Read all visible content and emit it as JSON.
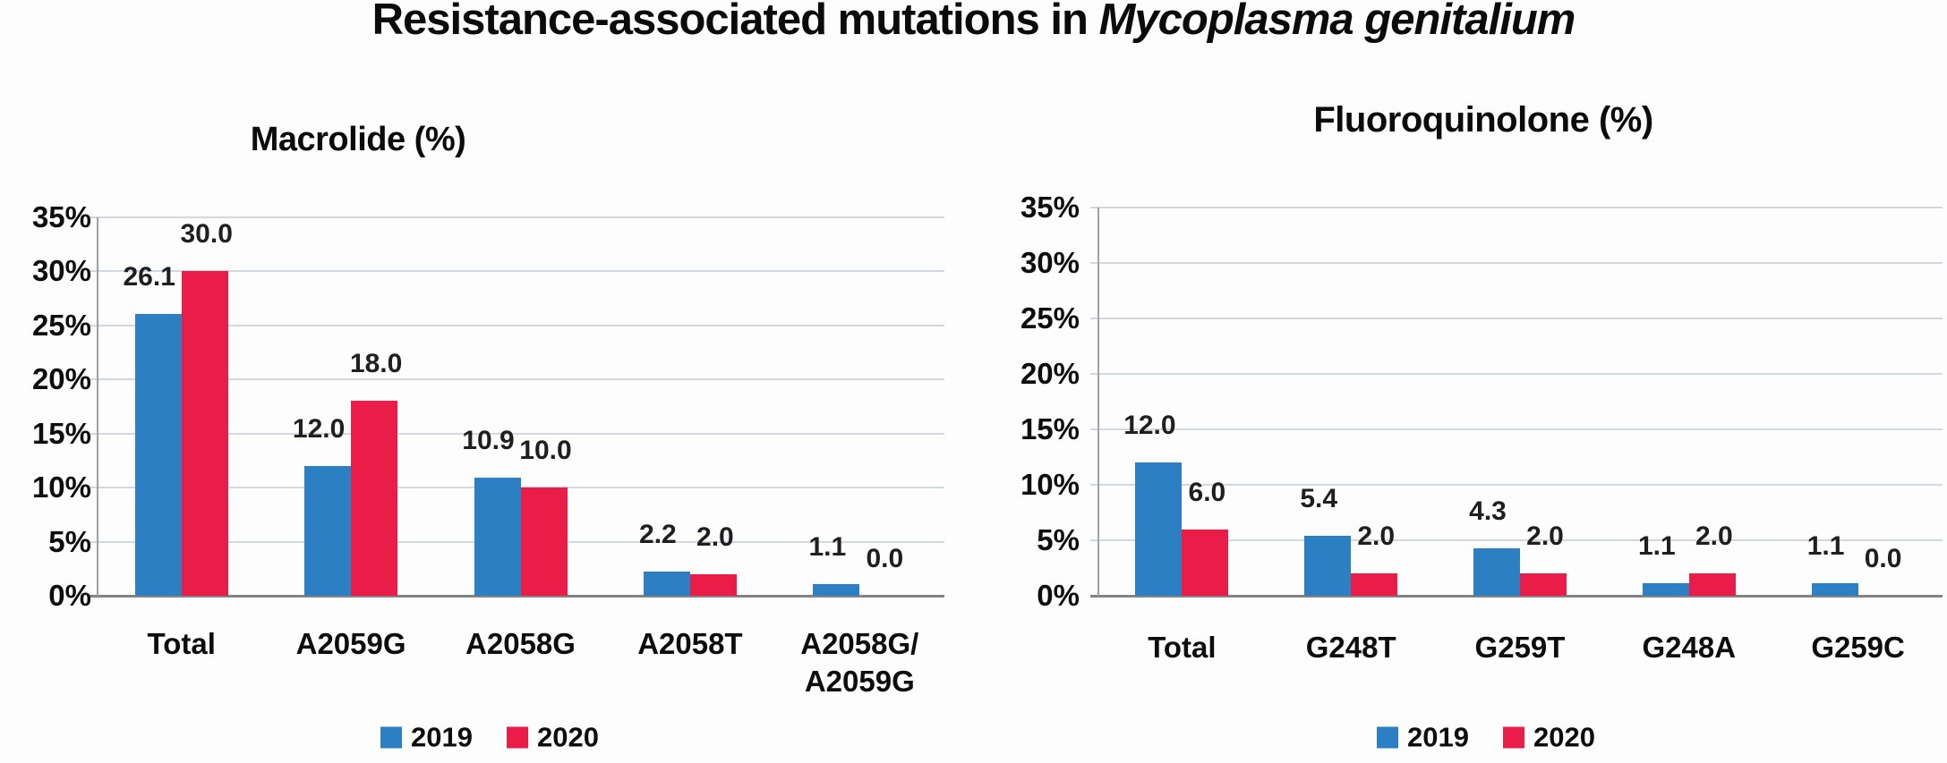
{
  "page": {
    "background": "#fdfdfd"
  },
  "title": {
    "prefix": "Resistance-associated mutations in ",
    "species": "Mycoplasma genitalium"
  },
  "colors": {
    "series_2019": "#2b7fc2",
    "series_2020": "#ea1c48",
    "gridline": "#d2d8e0",
    "axis": "#838383",
    "text": "#0d0d0d"
  },
  "chart_data": [
    {
      "type": "bar",
      "title": "Macrolide (%)",
      "categories": [
        "Total",
        "A2059G",
        "A2058G",
        "A2058T",
        "A2058G/\nA2059G"
      ],
      "series": [
        {
          "name": "2019",
          "color": "#2b7fc2",
          "values": [
            26.1,
            12.0,
            10.9,
            2.2,
            1.1
          ]
        },
        {
          "name": "2020",
          "color": "#ea1c48",
          "values": [
            30.0,
            18.0,
            10.0,
            2.0,
            0.0
          ]
        }
      ],
      "value_labels": [
        "26.1",
        "12.0",
        "10.9",
        "2.2",
        "1.1",
        "30.0",
        "18.0",
        "10.0",
        "2.0",
        "0.0"
      ],
      "ylim": [
        0,
        35
      ],
      "ytick_step": 5,
      "ytick_labels": [
        "0%",
        "5%",
        "10%",
        "15%",
        "20%",
        "25%",
        "30%",
        "35%"
      ],
      "grid": true,
      "legend_position": "bottom",
      "legend_labels": [
        "2019",
        "2020"
      ]
    },
    {
      "type": "bar",
      "title": "Fluoroquinolone (%)",
      "categories": [
        "Total",
        "G248T",
        "G259T",
        "G248A",
        "G259C"
      ],
      "series": [
        {
          "name": "2019",
          "color": "#2b7fc2",
          "values": [
            12.0,
            5.4,
            4.3,
            1.1,
            1.1
          ]
        },
        {
          "name": "2020",
          "color": "#ea1c48",
          "values": [
            6.0,
            2.0,
            2.0,
            2.0,
            0.0
          ]
        }
      ],
      "value_labels": [
        "12.0",
        "5.4",
        "4.3",
        "1.1",
        "1.1",
        "6.0",
        "2.0",
        "2.0",
        "2.0",
        "0.0"
      ],
      "ylim": [
        0,
        35
      ],
      "ytick_step": 5,
      "ytick_labels": [
        "0%",
        "5%",
        "10%",
        "15%",
        "20%",
        "25%",
        "30%",
        "35%"
      ],
      "grid": true,
      "legend_position": "bottom",
      "legend_labels": [
        "2019",
        "2020"
      ]
    }
  ]
}
